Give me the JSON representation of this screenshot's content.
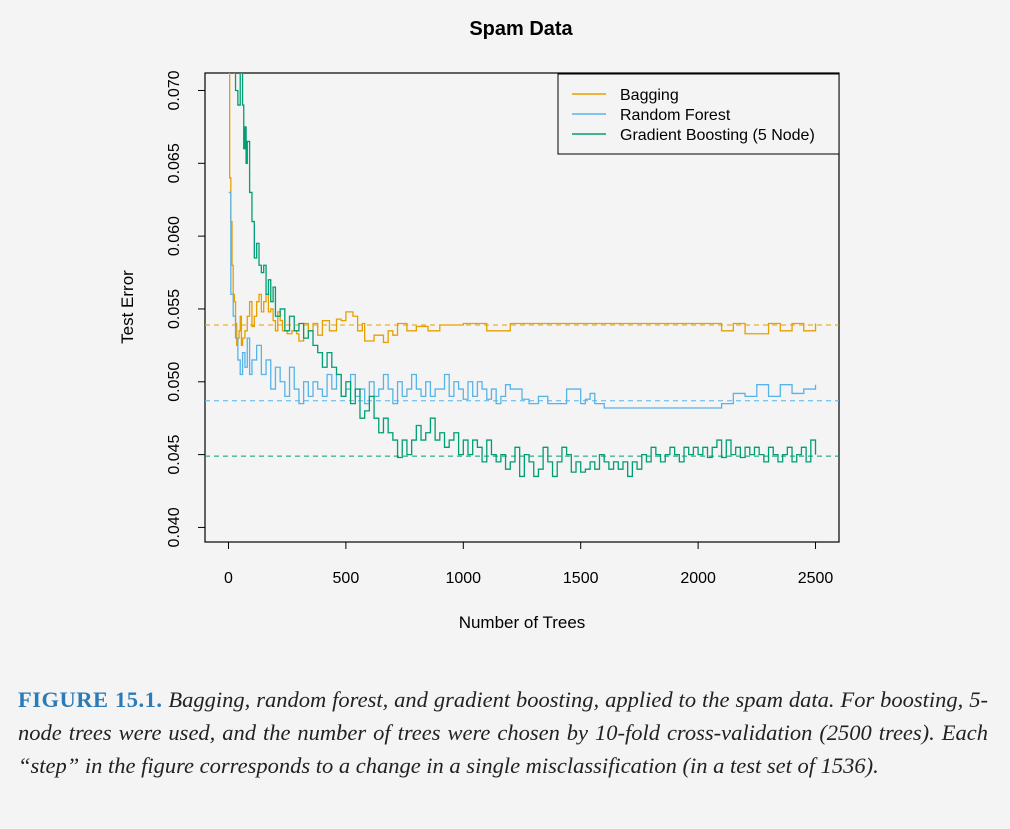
{
  "chart_data": {
    "type": "line",
    "title": "Spam Data",
    "xlabel": "Number of Trees",
    "ylabel": "Test Error",
    "xlim": [
      -100,
      2600
    ],
    "ylim": [
      0.039,
      0.0712
    ],
    "x_ticks": [
      "0",
      "500",
      "1000",
      "1500",
      "2000",
      "2500"
    ],
    "y_ticks": [
      "0.040",
      "0.045",
      "0.050",
      "0.055",
      "0.060",
      "0.065",
      "0.070"
    ],
    "legend_position": "top-right",
    "series": [
      {
        "name": "Bagging",
        "color": "#E69F00",
        "dashed_reference": 0.0539,
        "points": [
          [
            1,
            0.0712
          ],
          [
            5,
            0.064
          ],
          [
            10,
            0.061
          ],
          [
            15,
            0.058
          ],
          [
            20,
            0.056
          ],
          [
            25,
            0.0555
          ],
          [
            30,
            0.054
          ],
          [
            35,
            0.0525
          ],
          [
            40,
            0.053
          ],
          [
            45,
            0.0535
          ],
          [
            50,
            0.0545
          ],
          [
            55,
            0.0525
          ],
          [
            60,
            0.053
          ],
          [
            70,
            0.0535
          ],
          [
            80,
            0.0545
          ],
          [
            90,
            0.0555
          ],
          [
            100,
            0.0538
          ],
          [
            110,
            0.0545
          ],
          [
            120,
            0.0555
          ],
          [
            130,
            0.056
          ],
          [
            140,
            0.0548
          ],
          [
            150,
            0.0555
          ],
          [
            160,
            0.056
          ],
          [
            170,
            0.0548
          ],
          [
            180,
            0.055
          ],
          [
            190,
            0.0542
          ],
          [
            200,
            0.0535
          ],
          [
            210,
            0.0548
          ],
          [
            220,
            0.0542
          ],
          [
            230,
            0.0535
          ],
          [
            250,
            0.0533
          ],
          [
            270,
            0.0535
          ],
          [
            290,
            0.0533
          ],
          [
            300,
            0.0528
          ],
          [
            320,
            0.054
          ],
          [
            340,
            0.0535
          ],
          [
            360,
            0.054
          ],
          [
            380,
            0.0532
          ],
          [
            400,
            0.0542
          ],
          [
            430,
            0.0535
          ],
          [
            460,
            0.0543
          ],
          [
            480,
            0.0542
          ],
          [
            500,
            0.0548
          ],
          [
            530,
            0.0545
          ],
          [
            550,
            0.0535
          ],
          [
            570,
            0.054
          ],
          [
            580,
            0.0528
          ],
          [
            620,
            0.0532
          ],
          [
            660,
            0.0527
          ],
          [
            680,
            0.0535
          ],
          [
            700,
            0.0532
          ],
          [
            720,
            0.054
          ],
          [
            760,
            0.0535
          ],
          [
            800,
            0.0538
          ],
          [
            850,
            0.0535
          ],
          [
            900,
            0.0539
          ],
          [
            1000,
            0.054
          ],
          [
            1100,
            0.0535
          ],
          [
            1200,
            0.054
          ],
          [
            1400,
            0.054
          ],
          [
            1600,
            0.054
          ],
          [
            1800,
            0.054
          ],
          [
            2000,
            0.054
          ],
          [
            2100,
            0.0535
          ],
          [
            2150,
            0.054
          ],
          [
            2200,
            0.0533
          ],
          [
            2300,
            0.054
          ],
          [
            2350,
            0.0535
          ],
          [
            2400,
            0.054
          ],
          [
            2450,
            0.0535
          ],
          [
            2500,
            0.054
          ]
        ]
      },
      {
        "name": "Random Forest",
        "color": "#56B4E9",
        "dashed_reference": 0.0487,
        "points": [
          [
            1,
            0.063
          ],
          [
            10,
            0.056
          ],
          [
            20,
            0.0545
          ],
          [
            30,
            0.053
          ],
          [
            40,
            0.0515
          ],
          [
            50,
            0.0505
          ],
          [
            60,
            0.052
          ],
          [
            70,
            0.051
          ],
          [
            80,
            0.053
          ],
          [
            90,
            0.0505
          ],
          [
            100,
            0.0515
          ],
          [
            120,
            0.0525
          ],
          [
            140,
            0.0505
          ],
          [
            160,
            0.0515
          ],
          [
            180,
            0.0495
          ],
          [
            200,
            0.051
          ],
          [
            220,
            0.05
          ],
          [
            240,
            0.049
          ],
          [
            260,
            0.051
          ],
          [
            280,
            0.0495
          ],
          [
            300,
            0.0485
          ],
          [
            320,
            0.05
          ],
          [
            340,
            0.049
          ],
          [
            360,
            0.05
          ],
          [
            380,
            0.0495
          ],
          [
            400,
            0.049
          ],
          [
            420,
            0.0505
          ],
          [
            440,
            0.0495
          ],
          [
            460,
            0.0505
          ],
          [
            480,
            0.049
          ],
          [
            500,
            0.0495
          ],
          [
            520,
            0.0505
          ],
          [
            540,
            0.049
          ],
          [
            560,
            0.0495
          ],
          [
            580,
            0.0485
          ],
          [
            600,
            0.05
          ],
          [
            620,
            0.049
          ],
          [
            640,
            0.0495
          ],
          [
            660,
            0.0505
          ],
          [
            680,
            0.0495
          ],
          [
            700,
            0.0485
          ],
          [
            720,
            0.05
          ],
          [
            740,
            0.049
          ],
          [
            760,
            0.0495
          ],
          [
            780,
            0.0505
          ],
          [
            800,
            0.0495
          ],
          [
            820,
            0.049
          ],
          [
            840,
            0.05
          ],
          [
            860,
            0.049
          ],
          [
            880,
            0.0495
          ],
          [
            900,
            0.0495
          ],
          [
            920,
            0.0505
          ],
          [
            940,
            0.049
          ],
          [
            960,
            0.05
          ],
          [
            980,
            0.0495
          ],
          [
            1000,
            0.0488
          ],
          [
            1020,
            0.05
          ],
          [
            1040,
            0.049
          ],
          [
            1060,
            0.05
          ],
          [
            1080,
            0.0495
          ],
          [
            1100,
            0.0488
          ],
          [
            1120,
            0.0495
          ],
          [
            1140,
            0.0485
          ],
          [
            1160,
            0.049
          ],
          [
            1180,
            0.0498
          ],
          [
            1200,
            0.0495
          ],
          [
            1250,
            0.0488
          ],
          [
            1280,
            0.0485
          ],
          [
            1320,
            0.049
          ],
          [
            1360,
            0.0485
          ],
          [
            1400,
            0.0485
          ],
          [
            1440,
            0.0495
          ],
          [
            1480,
            0.0495
          ],
          [
            1500,
            0.0485
          ],
          [
            1520,
            0.0488
          ],
          [
            1540,
            0.0492
          ],
          [
            1560,
            0.0485
          ],
          [
            1600,
            0.0482
          ],
          [
            1700,
            0.0482
          ],
          [
            1800,
            0.0482
          ],
          [
            1900,
            0.0482
          ],
          [
            2000,
            0.0482
          ],
          [
            2100,
            0.0485
          ],
          [
            2150,
            0.0492
          ],
          [
            2200,
            0.049
          ],
          [
            2250,
            0.0498
          ],
          [
            2300,
            0.049
          ],
          [
            2350,
            0.0498
          ],
          [
            2400,
            0.0492
          ],
          [
            2450,
            0.0495
          ],
          [
            2500,
            0.0498
          ]
        ]
      },
      {
        "name": "Gradient Boosting (5 Node)",
        "color": "#009E73",
        "dashed_reference": 0.0449,
        "points": [
          [
            20,
            0.0712
          ],
          [
            30,
            0.07
          ],
          [
            40,
            0.069
          ],
          [
            50,
            0.0712
          ],
          [
            60,
            0.069
          ],
          [
            65,
            0.066
          ],
          [
            70,
            0.0675
          ],
          [
            75,
            0.065
          ],
          [
            80,
            0.0665
          ],
          [
            90,
            0.063
          ],
          [
            100,
            0.061
          ],
          [
            110,
            0.0585
          ],
          [
            120,
            0.0595
          ],
          [
            130,
            0.058
          ],
          [
            140,
            0.0575
          ],
          [
            150,
            0.058
          ],
          [
            160,
            0.056
          ],
          [
            170,
            0.057
          ],
          [
            180,
            0.0555
          ],
          [
            190,
            0.0565
          ],
          [
            200,
            0.0545
          ],
          [
            220,
            0.055
          ],
          [
            240,
            0.0535
          ],
          [
            260,
            0.0545
          ],
          [
            280,
            0.0535
          ],
          [
            300,
            0.054
          ],
          [
            320,
            0.053
          ],
          [
            340,
            0.0535
          ],
          [
            360,
            0.0525
          ],
          [
            380,
            0.052
          ],
          [
            400,
            0.051
          ],
          [
            420,
            0.052
          ],
          [
            440,
            0.051
          ],
          [
            460,
            0.0505
          ],
          [
            480,
            0.049
          ],
          [
            500,
            0.05
          ],
          [
            520,
            0.0485
          ],
          [
            540,
            0.0495
          ],
          [
            560,
            0.0475
          ],
          [
            580,
            0.048
          ],
          [
            600,
            0.049
          ],
          [
            620,
            0.0475
          ],
          [
            640,
            0.0465
          ],
          [
            660,
            0.0475
          ],
          [
            680,
            0.0465
          ],
          [
            700,
            0.046
          ],
          [
            720,
            0.0448
          ],
          [
            740,
            0.046
          ],
          [
            760,
            0.045
          ],
          [
            780,
            0.046
          ],
          [
            800,
            0.047
          ],
          [
            820,
            0.046
          ],
          [
            840,
            0.0465
          ],
          [
            860,
            0.0475
          ],
          [
            880,
            0.046
          ],
          [
            900,
            0.0465
          ],
          [
            920,
            0.0455
          ],
          [
            940,
            0.046
          ],
          [
            960,
            0.0465
          ],
          [
            980,
            0.045
          ],
          [
            1000,
            0.046
          ],
          [
            1020,
            0.045
          ],
          [
            1040,
            0.046
          ],
          [
            1060,
            0.0455
          ],
          [
            1080,
            0.0445
          ],
          [
            1100,
            0.046
          ],
          [
            1120,
            0.045
          ],
          [
            1140,
            0.0445
          ],
          [
            1160,
            0.045
          ],
          [
            1180,
            0.044
          ],
          [
            1200,
            0.0445
          ],
          [
            1220,
            0.0455
          ],
          [
            1240,
            0.0435
          ],
          [
            1260,
            0.045
          ],
          [
            1280,
            0.0445
          ],
          [
            1300,
            0.0435
          ],
          [
            1320,
            0.044
          ],
          [
            1340,
            0.0455
          ],
          [
            1360,
            0.0445
          ],
          [
            1380,
            0.0435
          ],
          [
            1400,
            0.0445
          ],
          [
            1420,
            0.0455
          ],
          [
            1440,
            0.045
          ],
          [
            1460,
            0.0438
          ],
          [
            1480,
            0.0445
          ],
          [
            1500,
            0.0438
          ],
          [
            1520,
            0.044
          ],
          [
            1540,
            0.0445
          ],
          [
            1560,
            0.044
          ],
          [
            1580,
            0.045
          ],
          [
            1600,
            0.0445
          ],
          [
            1620,
            0.044
          ],
          [
            1640,
            0.0445
          ],
          [
            1660,
            0.044
          ],
          [
            1680,
            0.0445
          ],
          [
            1700,
            0.0435
          ],
          [
            1720,
            0.0445
          ],
          [
            1740,
            0.044
          ],
          [
            1760,
            0.045
          ],
          [
            1780,
            0.0445
          ],
          [
            1800,
            0.0455
          ],
          [
            1820,
            0.045
          ],
          [
            1840,
            0.0445
          ],
          [
            1860,
            0.045
          ],
          [
            1880,
            0.0455
          ],
          [
            1900,
            0.045
          ],
          [
            1920,
            0.0445
          ],
          [
            1940,
            0.0455
          ],
          [
            1960,
            0.045
          ],
          [
            1980,
            0.0455
          ],
          [
            2000,
            0.045
          ],
          [
            2020,
            0.0455
          ],
          [
            2040,
            0.0448
          ],
          [
            2060,
            0.0455
          ],
          [
            2080,
            0.046
          ],
          [
            2100,
            0.0448
          ],
          [
            2120,
            0.046
          ],
          [
            2140,
            0.045
          ],
          [
            2160,
            0.0455
          ],
          [
            2180,
            0.0448
          ],
          [
            2200,
            0.0455
          ],
          [
            2220,
            0.045
          ],
          [
            2240,
            0.0455
          ],
          [
            2260,
            0.045
          ],
          [
            2280,
            0.0445
          ],
          [
            2300,
            0.0455
          ],
          [
            2320,
            0.045
          ],
          [
            2340,
            0.0445
          ],
          [
            2360,
            0.045
          ],
          [
            2380,
            0.0455
          ],
          [
            2400,
            0.0445
          ],
          [
            2420,
            0.045
          ],
          [
            2440,
            0.0455
          ],
          [
            2460,
            0.0445
          ],
          [
            2480,
            0.046
          ],
          [
            2500,
            0.045
          ]
        ]
      }
    ]
  },
  "caption": {
    "label": "FIGURE 15.1.",
    "text": " Bagging, random forest, and gradient boosting, applied to the spam data. For boosting, 5-node trees were used, and the number of trees were chosen by 10-fold cross-validation (2500 trees). Each “step” in the figure corresponds to a change in a single misclassification (in a test set of 1536)."
  }
}
